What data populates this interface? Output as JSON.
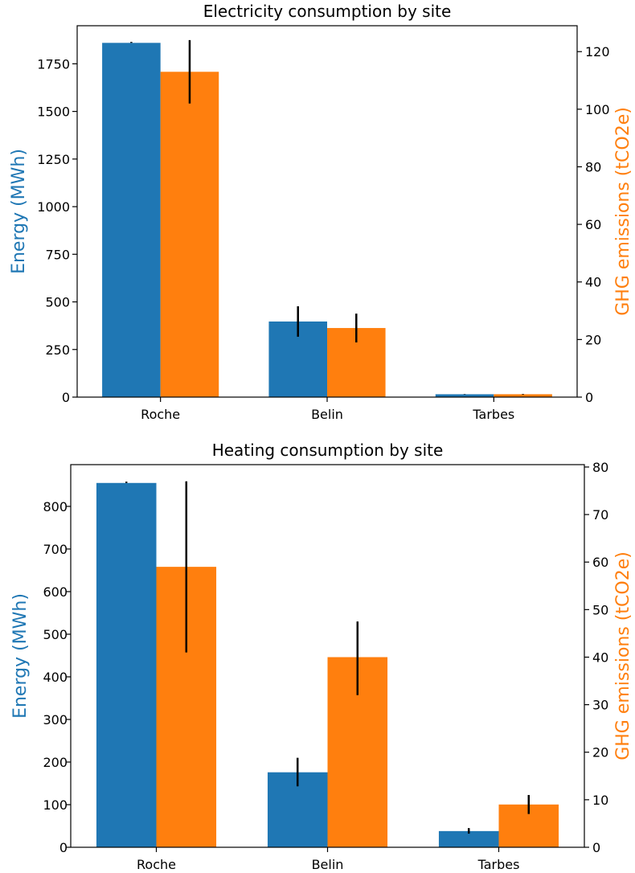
{
  "colors": {
    "energy": "#1f77b4",
    "ghg": "#ff7f0e",
    "axis": "#000000",
    "error": "#000000"
  },
  "chart_data": [
    {
      "type": "bar",
      "title": "Electricity consumption by site",
      "categories": [
        "Roche",
        "Belin",
        "Tarbes"
      ],
      "ylabel": "Energy (MWh)",
      "y2label": "GHG emissions (tCO2e)",
      "ylim": [
        0,
        1950
      ],
      "y2lim": [
        0,
        129
      ],
      "yticks": [
        0,
        250,
        500,
        750,
        1000,
        1250,
        1500,
        1750
      ],
      "y2ticks": [
        0,
        20,
        40,
        60,
        80,
        100,
        120
      ],
      "series": [
        {
          "axis": "left",
          "values": [
            1860,
            397,
            15
          ],
          "error": [
            [
              1860,
              1865
            ],
            [
              317,
              477
            ],
            [
              14,
              16
            ]
          ]
        },
        {
          "axis": "right",
          "values": [
            113,
            24,
            1
          ],
          "error": [
            [
              102,
              124
            ],
            [
              19,
              29
            ],
            [
              0.9,
              1.1
            ]
          ]
        }
      ],
      "grid": false
    },
    {
      "type": "bar",
      "title": "Heating consumption by site",
      "categories": [
        "Roche",
        "Belin",
        "Tarbes"
      ],
      "ylabel": "Energy (MWh)",
      "y2label": "GHG emissions (tCO2e)",
      "ylim": [
        0,
        898
      ],
      "y2lim": [
        0,
        80.5
      ],
      "yticks": [
        0,
        100,
        200,
        300,
        400,
        500,
        600,
        700,
        800
      ],
      "y2ticks": [
        0,
        10,
        20,
        30,
        40,
        50,
        60,
        70,
        80
      ],
      "series": [
        {
          "axis": "left",
          "values": [
            855,
            176,
            38
          ],
          "error": [
            [
              855,
              858
            ],
            [
              143,
              210
            ],
            [
              32,
              45
            ]
          ]
        },
        {
          "axis": "right",
          "values": [
            59,
            40,
            9
          ],
          "error": [
            [
              41,
              77
            ],
            [
              32,
              47.5
            ],
            [
              7,
              11
            ]
          ]
        }
      ],
      "grid": false
    }
  ]
}
